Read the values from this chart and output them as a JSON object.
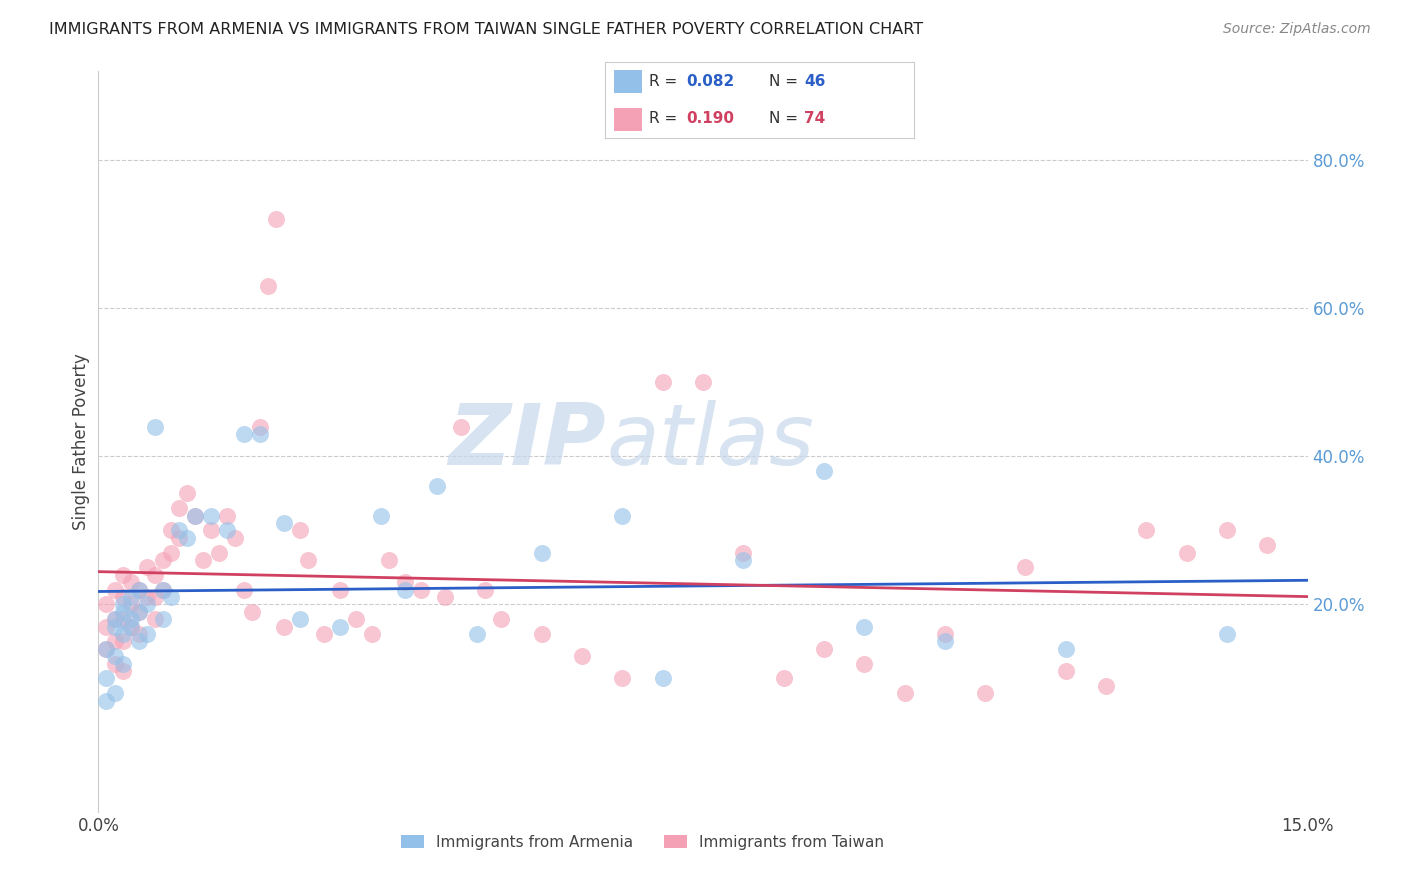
{
  "title": "IMMIGRANTS FROM ARMENIA VS IMMIGRANTS FROM TAIWAN SINGLE FATHER POVERTY CORRELATION CHART",
  "source": "Source: ZipAtlas.com",
  "ylabel_label": "Single Father Poverty",
  "right_yticks": [
    "80.0%",
    "60.0%",
    "40.0%",
    "20.0%"
  ],
  "right_ytick_vals": [
    0.8,
    0.6,
    0.4,
    0.2
  ],
  "xlim": [
    0.0,
    0.15
  ],
  "ylim": [
    -0.08,
    0.92
  ],
  "color_armenia": "#92C0E8",
  "color_taiwan": "#F4A0B5",
  "line_color_armenia": "#2B5FC7",
  "line_color_taiwan": "#D04060",
  "watermark_zip": "ZIP",
  "watermark_atlas": "atlas",
  "armenia_x": [
    0.001,
    0.001,
    0.001,
    0.002,
    0.002,
    0.002,
    0.002,
    0.003,
    0.003,
    0.003,
    0.003,
    0.004,
    0.004,
    0.004,
    0.005,
    0.005,
    0.005,
    0.006,
    0.006,
    0.007,
    0.008,
    0.008,
    0.009,
    0.01,
    0.011,
    0.012,
    0.014,
    0.016,
    0.018,
    0.02,
    0.023,
    0.025,
    0.03,
    0.035,
    0.038,
    0.042,
    0.047,
    0.055,
    0.065,
    0.07,
    0.08,
    0.09,
    0.095,
    0.105,
    0.12,
    0.14
  ],
  "armenia_y": [
    0.14,
    0.1,
    0.07,
    0.17,
    0.13,
    0.08,
    0.18,
    0.19,
    0.16,
    0.12,
    0.2,
    0.18,
    0.21,
    0.17,
    0.22,
    0.19,
    0.15,
    0.2,
    0.16,
    0.44,
    0.22,
    0.18,
    0.21,
    0.3,
    0.29,
    0.32,
    0.32,
    0.3,
    0.43,
    0.43,
    0.31,
    0.18,
    0.17,
    0.32,
    0.22,
    0.36,
    0.16,
    0.27,
    0.32,
    0.1,
    0.26,
    0.38,
    0.17,
    0.15,
    0.14,
    0.16
  ],
  "taiwan_x": [
    0.001,
    0.001,
    0.001,
    0.002,
    0.002,
    0.002,
    0.002,
    0.003,
    0.003,
    0.003,
    0.003,
    0.003,
    0.004,
    0.004,
    0.004,
    0.005,
    0.005,
    0.005,
    0.006,
    0.006,
    0.007,
    0.007,
    0.007,
    0.008,
    0.008,
    0.009,
    0.009,
    0.01,
    0.01,
    0.011,
    0.012,
    0.013,
    0.014,
    0.015,
    0.016,
    0.017,
    0.018,
    0.019,
    0.02,
    0.021,
    0.022,
    0.023,
    0.025,
    0.026,
    0.028,
    0.03,
    0.032,
    0.034,
    0.036,
    0.038,
    0.04,
    0.043,
    0.045,
    0.048,
    0.05,
    0.055,
    0.06,
    0.065,
    0.07,
    0.075,
    0.08,
    0.085,
    0.09,
    0.095,
    0.1,
    0.105,
    0.11,
    0.115,
    0.12,
    0.125,
    0.13,
    0.135,
    0.14,
    0.145
  ],
  "taiwan_y": [
    0.2,
    0.17,
    0.14,
    0.22,
    0.18,
    0.15,
    0.12,
    0.24,
    0.21,
    0.18,
    0.15,
    0.11,
    0.23,
    0.2,
    0.17,
    0.22,
    0.19,
    0.16,
    0.25,
    0.21,
    0.24,
    0.21,
    0.18,
    0.26,
    0.22,
    0.3,
    0.27,
    0.33,
    0.29,
    0.35,
    0.32,
    0.26,
    0.3,
    0.27,
    0.32,
    0.29,
    0.22,
    0.19,
    0.44,
    0.63,
    0.72,
    0.17,
    0.3,
    0.26,
    0.16,
    0.22,
    0.18,
    0.16,
    0.26,
    0.23,
    0.22,
    0.21,
    0.44,
    0.22,
    0.18,
    0.16,
    0.13,
    0.1,
    0.5,
    0.5,
    0.27,
    0.1,
    0.14,
    0.12,
    0.08,
    0.16,
    0.08,
    0.25,
    0.11,
    0.09,
    0.3,
    0.27,
    0.3,
    0.28
  ]
}
